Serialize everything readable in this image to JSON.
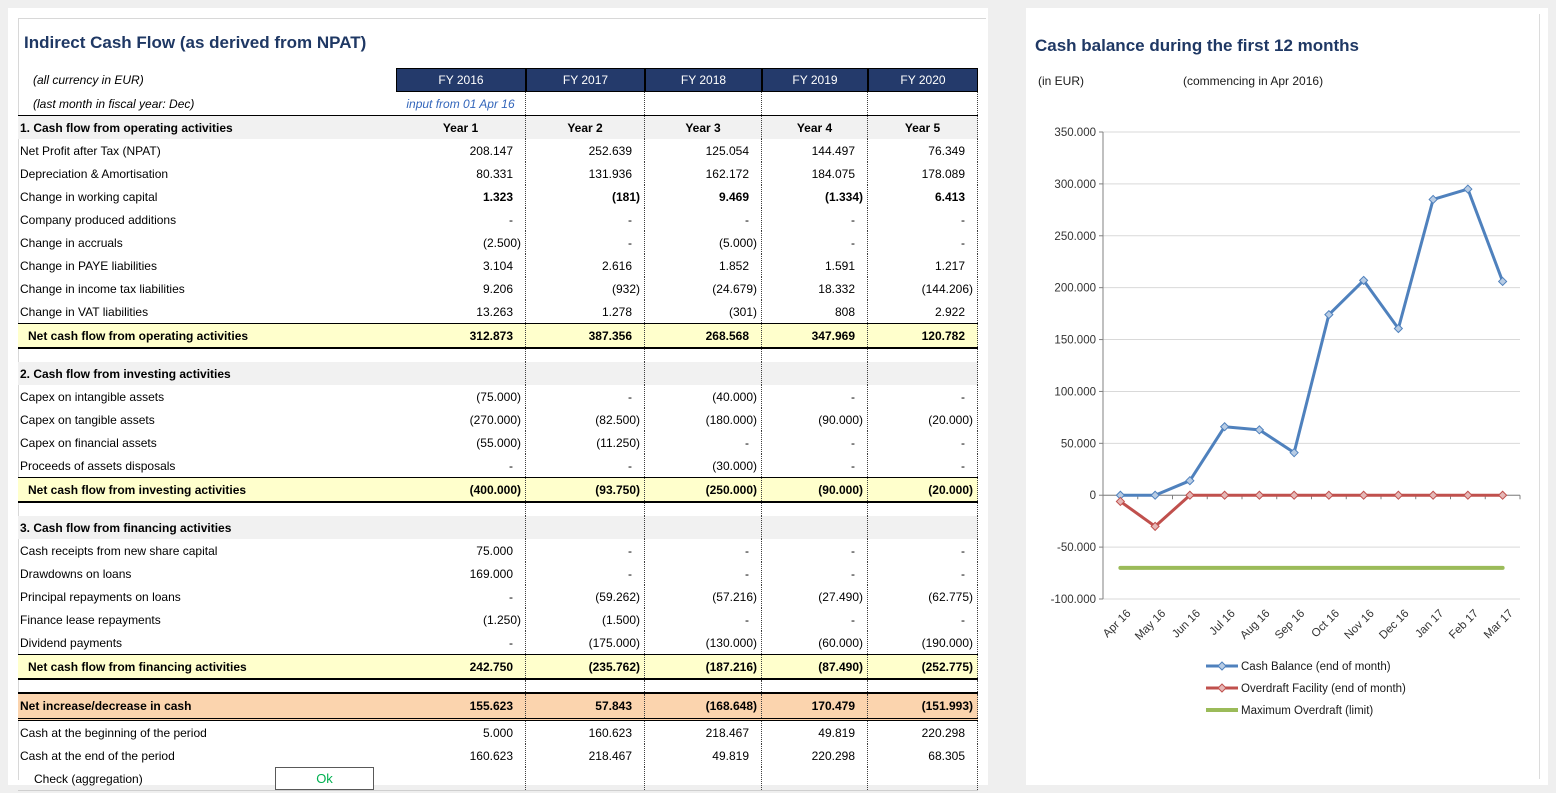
{
  "left_panel": {
    "title": "Indirect Cash Flow (as derived from NPAT)",
    "currency_note": "(all currency in EUR)",
    "fiscal_note": "(last month in fiscal year: Dec)",
    "input_note": "input from 01 Apr 16",
    "fy_headers": [
      "FY 2016",
      "FY 2017",
      "FY 2018",
      "FY 2019",
      "FY 2020"
    ],
    "year_headers": [
      "Year 1",
      "Year 2",
      "Year 3",
      "Year 4",
      "Year 5"
    ],
    "sections": [
      {
        "header": "1. Cash flow from operating activities",
        "show_years": true,
        "rows": [
          {
            "label": "Net Profit after Tax (NPAT)",
            "values": [
              "208.147",
              "252.639",
              "125.054",
              "144.497",
              "76.349"
            ]
          },
          {
            "label": "Depreciation & Amortisation",
            "values": [
              "80.331",
              "131.936",
              "162.172",
              "184.075",
              "178.089"
            ]
          },
          {
            "label": "Change in working capital",
            "values": [
              "1.323",
              "(181)",
              "9.469",
              "(1.334)",
              "6.413"
            ],
            "bold_values": true
          },
          {
            "label": "Company produced additions",
            "values": [
              "-",
              "-",
              "-",
              "-",
              "-"
            ]
          },
          {
            "label": "Change in accruals",
            "values": [
              "(2.500)",
              "-",
              "(5.000)",
              "-",
              "-"
            ]
          },
          {
            "label": "Change in PAYE liabilities",
            "values": [
              "3.104",
              "2.616",
              "1.852",
              "1.591",
              "1.217"
            ]
          },
          {
            "label": "Change in income tax liabilities",
            "values": [
              "9.206",
              "(932)",
              "(24.679)",
              "18.332",
              "(144.206)"
            ]
          },
          {
            "label": "Change in VAT liabilities",
            "values": [
              "13.263",
              "1.278",
              "(301)",
              "808",
              "2.922"
            ]
          }
        ],
        "total": {
          "label": "Net cash flow from operating activities",
          "values": [
            "312.873",
            "387.356",
            "268.568",
            "347.969",
            "120.782"
          ]
        }
      },
      {
        "header": "2. Cash flow from investing activities",
        "show_years": false,
        "rows": [
          {
            "label": "Capex on intangible assets",
            "values": [
              "(75.000)",
              "-",
              "(40.000)",
              "-",
              "-"
            ]
          },
          {
            "label": "Capex on tangible assets",
            "values": [
              "(270.000)",
              "(82.500)",
              "(180.000)",
              "(90.000)",
              "(20.000)"
            ]
          },
          {
            "label": "Capex on financial assets",
            "values": [
              "(55.000)",
              "(11.250)",
              "-",
              "-",
              "-"
            ]
          },
          {
            "label": "Proceeds of assets disposals",
            "values": [
              "-",
              "-",
              "(30.000)",
              "-",
              "-"
            ]
          }
        ],
        "total": {
          "label": "Net cash flow from investing activities",
          "values": [
            "(400.000)",
            "(93.750)",
            "(250.000)",
            "(90.000)",
            "(20.000)"
          ]
        }
      },
      {
        "header": "3. Cash flow from financing activities",
        "show_years": false,
        "rows": [
          {
            "label": "Cash receipts from new share capital",
            "values": [
              "75.000",
              "-",
              "-",
              "-",
              "-"
            ]
          },
          {
            "label": "Drawdowns on loans",
            "values": [
              "169.000",
              "-",
              "-",
              "-",
              "-"
            ]
          },
          {
            "label": "Principal repayments on loans",
            "values": [
              "-",
              "(59.262)",
              "(57.216)",
              "(27.490)",
              "(62.775)"
            ]
          },
          {
            "label": "Finance lease repayments",
            "values": [
              "(1.250)",
              "(1.500)",
              "-",
              "-",
              "-"
            ]
          },
          {
            "label": "Dividend payments",
            "values": [
              "-",
              "(175.000)",
              "(130.000)",
              "(60.000)",
              "(190.000)"
            ]
          }
        ],
        "total": {
          "label": "Net cash flow from financing activities",
          "values": [
            "242.750",
            "(235.762)",
            "(187.216)",
            "(87.490)",
            "(252.775)"
          ]
        }
      }
    ],
    "summary": {
      "net_change": {
        "label": "Net increase/decrease in cash",
        "values": [
          "155.623",
          "57.843",
          "(168.648)",
          "170.479",
          "(151.993)"
        ]
      },
      "rows": [
        {
          "label": "Cash at the beginning of the period",
          "values": [
            "5.000",
            "160.623",
            "218.467",
            "49.819",
            "220.298"
          ]
        },
        {
          "label": "Cash at the end of the period",
          "values": [
            "160.623",
            "218.467",
            "49.819",
            "220.298",
            "68.305"
          ]
        }
      ],
      "check_label": "Check (aggregation)",
      "check_value": "Ok"
    }
  },
  "right_panel": {
    "title": "Cash balance during the first 12 months",
    "note_left": "(in EUR)",
    "note_right": "(commencing in Apr 2016)"
  },
  "chart_data": {
    "type": "line",
    "title": "Cash balance during the first 12 months",
    "categories": [
      "Apr 16",
      "May 16",
      "Jun 16",
      "Jul 16",
      "Aug 16",
      "Sep 16",
      "Oct 16",
      "Nov 16",
      "Dec 16",
      "Jan 17",
      "Feb 17",
      "Mar 17"
    ],
    "series": [
      {
        "name": "Cash Balance (end of month)",
        "color": "#4F81BD",
        "marker": "diamond",
        "marker_fill": "#B8CCE4",
        "values": [
          0,
          0,
          14000,
          66000,
          63000,
          41000,
          174000,
          207000,
          160623,
          285000,
          295000,
          206000
        ]
      },
      {
        "name": "Overdraft Facility (end of month)",
        "color": "#C0504D",
        "marker": "diamond",
        "marker_fill": "#E5B8B7",
        "values": [
          -6000,
          -30000,
          0,
          0,
          0,
          0,
          0,
          0,
          0,
          0,
          0,
          0
        ]
      },
      {
        "name": "Maximum Overdraft (limit)",
        "color": "#9BBB59",
        "marker": "none",
        "values": [
          -70000,
          -70000,
          -70000,
          -70000,
          -70000,
          -70000,
          -70000,
          -70000,
          -70000,
          -70000,
          -70000,
          -70000
        ]
      }
    ],
    "ylim": [
      -100000,
      350000
    ],
    "ytick_step": 50000,
    "grid": true,
    "legend_position": "bottom",
    "xlabel": "",
    "ylabel": ""
  },
  "colors": {
    "header_navy": "#243A6B",
    "title_navy": "#1F3864",
    "subtotal_yellow": "#FFFFCC",
    "net_orange": "#FBD4AE",
    "section_gray": "#F1F1F1",
    "input_blue": "#3366BB",
    "ok_green": "#00B050",
    "gridline_gray": "#D9D9D9",
    "axis_gray": "#808080"
  }
}
